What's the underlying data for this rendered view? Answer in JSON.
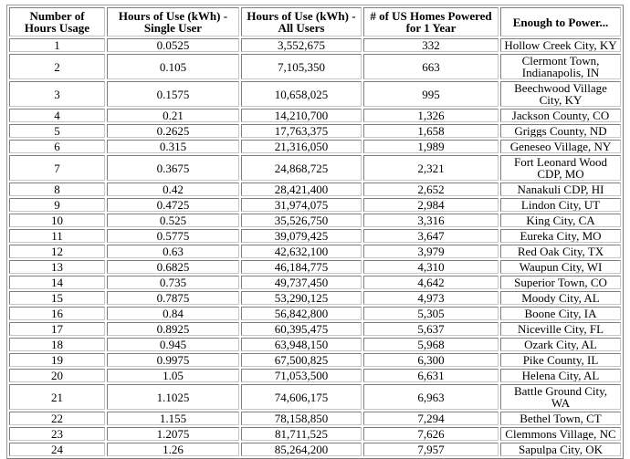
{
  "chart_data": {
    "type": "table",
    "columns": [
      "Number of\nHours Usage",
      "Hours of Use (kWh) -\nSingle User",
      "Hours of Use (kWh) -\nAll Users",
      "# of US Homes Powered\nfor 1 Year",
      "Enough to Power..."
    ],
    "rows": [
      [
        "1",
        "0.0525",
        "3,552,675",
        "332",
        "Hollow Creek City, KY"
      ],
      [
        "2",
        "0.105",
        "7,105,350",
        "663",
        "Clermont Town,\nIndianapolis, IN"
      ],
      [
        "3",
        "0.1575",
        "10,658,025",
        "995",
        "Beechwood Village\nCity, KY"
      ],
      [
        "4",
        "0.21",
        "14,210,700",
        "1,326",
        "Jackson County, CO"
      ],
      [
        "5",
        "0.2625",
        "17,763,375",
        "1,658",
        "Griggs County, ND"
      ],
      [
        "6",
        "0.315",
        "21,316,050",
        "1,989",
        "Geneseo Village, NY"
      ],
      [
        "7",
        "0.3675",
        "24,868,725",
        "2,321",
        "Fort Leonard Wood\nCDP, MO"
      ],
      [
        "8",
        "0.42",
        "28,421,400",
        "2,652",
        "Nanakuli CDP, HI"
      ],
      [
        "9",
        "0.4725",
        "31,974,075",
        "2,984",
        "Lindon City, UT"
      ],
      [
        "10",
        "0.525",
        "35,526,750",
        "3,316",
        "King City, CA"
      ],
      [
        "11",
        "0.5775",
        "39,079,425",
        "3,647",
        "Eureka City, MO"
      ],
      [
        "12",
        "0.63",
        "42,632,100",
        "3,979",
        "Red Oak City, TX"
      ],
      [
        "13",
        "0.6825",
        "46,184,775",
        "4,310",
        "Waupun City, WI"
      ],
      [
        "14",
        "0.735",
        "49,737,450",
        "4,642",
        "Superior Town, CO"
      ],
      [
        "15",
        "0.7875",
        "53,290,125",
        "4,973",
        "Moody City, AL"
      ],
      [
        "16",
        "0.84",
        "56,842,800",
        "5,305",
        "Boone City, IA"
      ],
      [
        "17",
        "0.8925",
        "60,395,475",
        "5,637",
        "Niceville City, FL"
      ],
      [
        "18",
        "0.945",
        "63,948,150",
        "5,968",
        "Ozark City, AL"
      ],
      [
        "19",
        "0.9975",
        "67,500,825",
        "6,300",
        "Pike County, IL"
      ],
      [
        "20",
        "1.05",
        "71,053,500",
        "6,631",
        "Helena City, AL"
      ],
      [
        "21",
        "1.1025",
        "74,606,175",
        "6,963",
        "Battle Ground City,\nWA"
      ],
      [
        "22",
        "1.155",
        "78,158,850",
        "7,294",
        "Bethel Town, CT"
      ],
      [
        "23",
        "1.2075",
        "81,711,525",
        "7,626",
        "Clemmons Village, NC"
      ],
      [
        "24",
        "1.26",
        "85,264,200",
        "7,957",
        "Sapulpa City, OK"
      ]
    ]
  }
}
